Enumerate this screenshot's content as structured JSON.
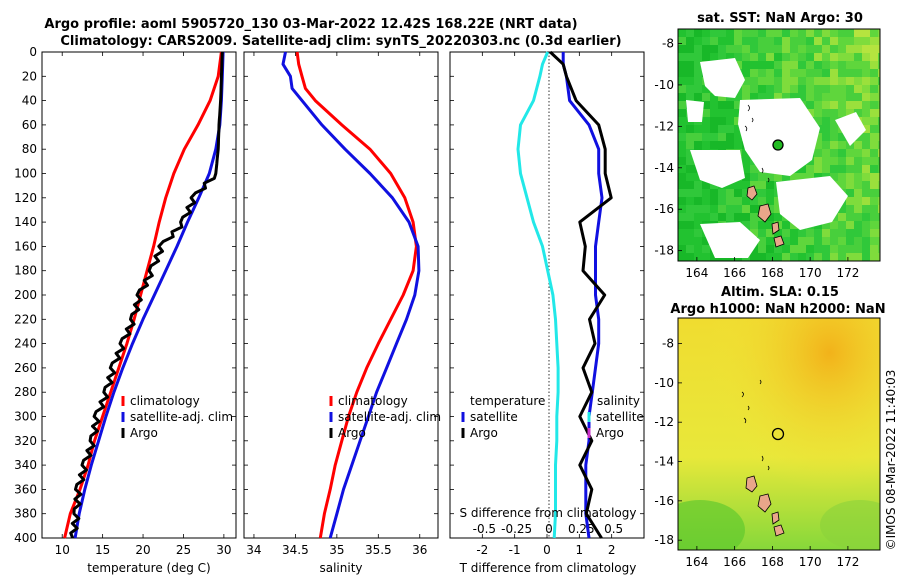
{
  "title": {
    "line1": "Argo profile: aoml 5905720_130 03-Mar-2022 12.42S 168.22E (NRT data)",
    "line2": "Climatology: CARS2009. Satellite-adj clim: synTS_20220303.nc (0.3d earlier)"
  },
  "timestamp": "©IMOS 08-Mar-2022 11:40:03",
  "colors": {
    "red": "#ff0000",
    "blue": "#1010e0",
    "black": "#000000",
    "cyan": "#22e8e8",
    "magenta": "#cc33cc"
  },
  "depth_ticks": [
    "0",
    "20",
    "40",
    "60",
    "80",
    "100",
    "120",
    "140",
    "160",
    "180",
    "200",
    "220",
    "240",
    "260",
    "280",
    "300",
    "320",
    "340",
    "360",
    "380",
    "400"
  ],
  "chart_data": [
    {
      "type": "line",
      "id": "temperature",
      "xlabel": "temperature (deg C)",
      "ylabel": "depth",
      "xlim": [
        7.5,
        31.5
      ],
      "ylim": [
        0,
        400
      ],
      "xticks": [
        10,
        15,
        20,
        25,
        30
      ],
      "xtick_labels": [
        "10",
        "15",
        "20",
        "25",
        "30"
      ],
      "depth": [
        0,
        20,
        40,
        60,
        80,
        100,
        120,
        140,
        160,
        180,
        200,
        220,
        240,
        260,
        280,
        300,
        320,
        340,
        360,
        380,
        400
      ],
      "series": [
        {
          "name": "climatology",
          "color": "#ff0000",
          "values": [
            29.7,
            29.3,
            28.3,
            26.8,
            25.1,
            23.8,
            22.8,
            22.0,
            21.3,
            20.5,
            19.7,
            18.9,
            18.0,
            17.0,
            16.0,
            15.0,
            14.0,
            13.2,
            12.2,
            11.0,
            10.3
          ]
        },
        {
          "name": "satellite-adj. clim",
          "color": "#1010e0",
          "values": [
            29.9,
            29.8,
            29.7,
            29.5,
            29.0,
            28.2,
            26.9,
            25.5,
            24.2,
            22.8,
            21.4,
            20.0,
            18.7,
            17.5,
            16.4,
            15.4,
            14.5,
            13.6,
            12.8,
            12.1,
            11.6
          ]
        },
        {
          "name": "Argo",
          "color": "#000000",
          "values": [
            29.8,
            29.7,
            29.6,
            29.4,
            29.3,
            29.0,
            26.3,
            25.0,
            22.3,
            21.1,
            19.6,
            18.8,
            17.5,
            16.3,
            15.5,
            14.3,
            13.8,
            12.8,
            12.0,
            11.8,
            11.3
          ]
        }
      ],
      "legend": [
        "climatology",
        "satellite-adj. clim",
        "Argo"
      ]
    },
    {
      "type": "line",
      "id": "salinity",
      "xlabel": "salinity",
      "ylabel": "depth",
      "xlim": [
        33.88,
        36.22
      ],
      "ylim": [
        0,
        400
      ],
      "xticks": [
        34,
        34.5,
        35,
        35.5,
        36
      ],
      "xtick_labels": [
        "34",
        "34.5",
        "35",
        "35.5",
        "36"
      ],
      "depth": [
        0,
        10,
        20,
        30,
        40,
        60,
        80,
        100,
        120,
        140,
        160,
        180,
        200,
        220,
        240,
        260,
        280,
        300,
        320,
        340,
        360,
        380,
        400
      ],
      "series": [
        {
          "name": "climatology",
          "color": "#ff0000",
          "values": [
            34.52,
            34.54,
            34.58,
            34.62,
            34.74,
            35.06,
            35.4,
            35.65,
            35.82,
            35.92,
            35.96,
            35.92,
            35.8,
            35.65,
            35.5,
            35.36,
            35.24,
            35.14,
            35.06,
            34.98,
            34.92,
            34.85,
            34.8
          ]
        },
        {
          "name": "satellite-adj. clim",
          "color": "#1010e0",
          "values": [
            34.38,
            34.35,
            34.44,
            34.46,
            34.58,
            34.82,
            35.1,
            35.4,
            35.67,
            35.87,
            35.98,
            35.99,
            35.94,
            35.84,
            35.72,
            35.6,
            35.48,
            35.38,
            35.28,
            35.18,
            35.08,
            35.0,
            34.92
          ]
        },
        {
          "name": "Argo",
          "color": "#000000",
          "values": []
        }
      ],
      "legend": [
        "climatology",
        "satellite-adj. clim",
        "Argo"
      ]
    },
    {
      "type": "line",
      "id": "difference",
      "xlabel": "T difference from climatology",
      "x2label": "S difference from climatology",
      "ylabel": "depth",
      "xlim": [
        -3,
        3
      ],
      "ylim": [
        0,
        400
      ],
      "xticks": [
        -2,
        -1,
        0,
        1,
        2
      ],
      "xtick_labels": [
        "-2",
        "-1",
        "0",
        "1",
        "2"
      ],
      "x2ticks": [
        -0.5,
        -0.25,
        0,
        0.25,
        0.5
      ],
      "x2tick_labels": [
        "-0.5",
        "-0.25",
        "0",
        "0.25",
        "0.5"
      ],
      "depth": [
        0,
        10,
        20,
        40,
        60,
        80,
        100,
        120,
        140,
        160,
        180,
        200,
        220,
        240,
        260,
        280,
        300,
        320,
        340,
        360,
        380,
        400
      ],
      "series": [
        {
          "name": "temperature satellite",
          "color": "#1010e0",
          "values": [
            0.5,
            0.5,
            0.6,
            0.7,
            1.3,
            1.6,
            1.6,
            1.7,
            1.6,
            1.5,
            1.5,
            1.5,
            1.6,
            1.6,
            1.5,
            1.4,
            1.3,
            1.3,
            1.2,
            1.2,
            1.2,
            1.3
          ]
        },
        {
          "name": "temperature Argo",
          "color": "#000000",
          "values": [
            0.1,
            0.5,
            0.6,
            0.9,
            1.6,
            1.8,
            1.8,
            1.8,
            1.2,
            1.0,
            1.3,
            1.6,
            1.5,
            1.3,
            1.3,
            1.2,
            1.2,
            1.2,
            1.2,
            1.2,
            1.4,
            1.5
          ]
        },
        {
          "name": "salinity satellite",
          "color": "#22e8e8",
          "values": [
            -0.01,
            -0.05,
            -0.07,
            -0.12,
            -0.22,
            -0.24,
            -0.22,
            -0.17,
            -0.12,
            -0.05,
            -0.01,
            0.03,
            0.05,
            0.06,
            0.07,
            0.07,
            0.06,
            0.06,
            0.05,
            0.05,
            0.05,
            0.04
          ]
        },
        {
          "name": "salinity Argo",
          "color": "#cc33cc",
          "values": []
        }
      ],
      "legend_left_title": "temperature",
      "legend_right_title": "salinity",
      "legend_left": [
        "satellite",
        "Argo"
      ],
      "legend_right": [
        "satellite",
        "Argo"
      ]
    },
    {
      "type": "heatmap",
      "id": "sst_map",
      "title": "sat. SST: NaN Argo: 30",
      "xlim": [
        163,
        173.7
      ],
      "ylim": [
        -18.5,
        -7.3
      ],
      "xticks": [
        164,
        166,
        168,
        170,
        172
      ],
      "xtick_labels": [
        "164",
        "166",
        "168",
        "170",
        "172"
      ],
      "yticks": [
        -8,
        -10,
        -12,
        -14,
        -16,
        -18
      ],
      "ytick_labels": [
        "-8",
        "-10",
        "-12",
        "-14",
        "-16",
        "-18"
      ],
      "argo_position": [
        168.22,
        -12.42
      ]
    },
    {
      "type": "heatmap",
      "id": "sla_map",
      "title1": "Altim. SLA: 0.15",
      "title2": "Argo h1000: NaN h2000: NaN",
      "xlim": [
        163,
        173.7
      ],
      "ylim": [
        -18.5,
        -6.7
      ],
      "xticks": [
        164,
        166,
        168,
        170,
        172
      ],
      "xtick_labels": [
        "164",
        "166",
        "168",
        "170",
        "172"
      ],
      "yticks": [
        -8,
        -10,
        -12,
        -14,
        -16,
        -18
      ],
      "ytick_labels": [
        "-8",
        "-10",
        "-12",
        "-14",
        "-16",
        "-18"
      ],
      "argo_position": [
        168.22,
        -12.42
      ]
    }
  ]
}
